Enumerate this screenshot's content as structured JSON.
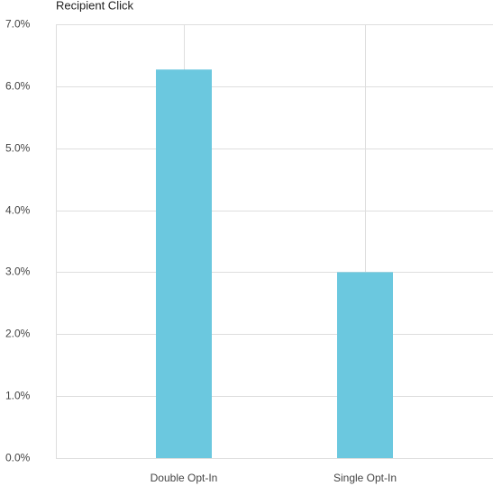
{
  "chart_data": {
    "type": "bar",
    "title": "Recipient Click",
    "categories": [
      "Double Opt-In",
      "Single Opt-In"
    ],
    "values": [
      6.27,
      3.0
    ],
    "color": "#6bc8df",
    "ylim": [
      0,
      7
    ],
    "yticks": [
      {
        "value": 0,
        "label": "0.0%"
      },
      {
        "value": 1,
        "label": "1.0%"
      },
      {
        "value": 2,
        "label": "2.0%"
      },
      {
        "value": 3,
        "label": "3.0%"
      },
      {
        "value": 4,
        "label": "4.0%"
      },
      {
        "value": 5,
        "label": "5.0%"
      },
      {
        "value": 6,
        "label": "6.0%"
      },
      {
        "value": 7,
        "label": "7.0%"
      }
    ],
    "grid": true
  }
}
